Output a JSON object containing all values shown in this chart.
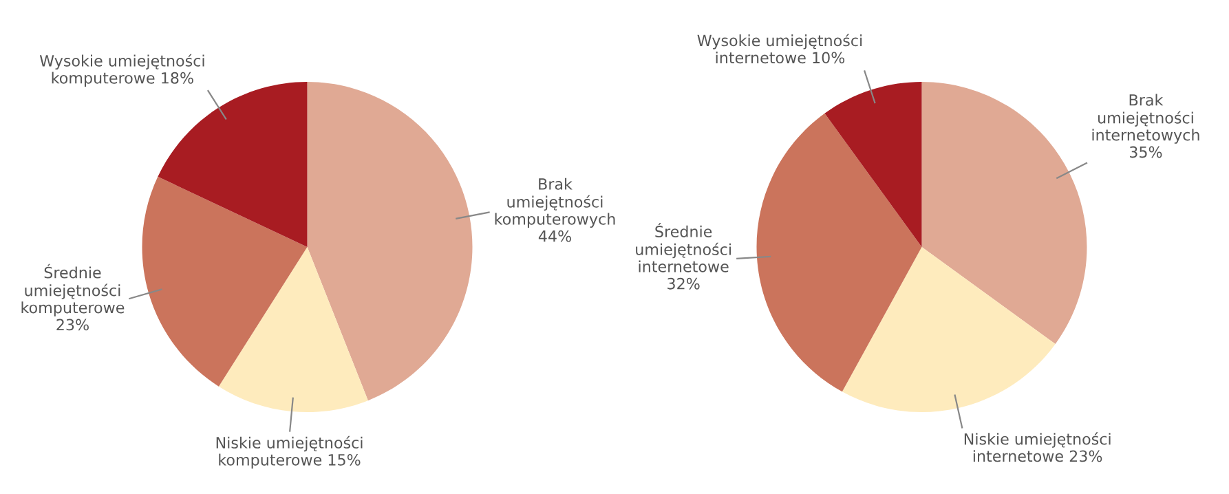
{
  "chart_data": [
    {
      "type": "pie",
      "categories": [
        "Brak\numiejętności\nkomputerowych",
        "Niskie umiejętności\nkomputerowe",
        "Średnie\numiejętności\nkomputerowe",
        "Wysokie umiejętności\nkomputerowe"
      ],
      "values": [
        44,
        15,
        23,
        18
      ],
      "value_labels": [
        "44%",
        "15%",
        "23%",
        "18%"
      ],
      "colors": [
        "#e0a994",
        "#feebbd",
        "#cb745c",
        "#a81c22"
      ]
    },
    {
      "type": "pie",
      "categories": [
        "Brak\numiejętności\ninternetowych",
        "Niskie umiejętności\ninternetowe",
        "Średnie\numiejętności\ninternetowe",
        "Wysokie umiejętności\ninternetowe"
      ],
      "values": [
        35,
        23,
        32,
        10
      ],
      "value_labels": [
        "35%",
        "23%",
        "32%",
        "10%"
      ],
      "colors": [
        "#e0a994",
        "#feebbd",
        "#cb745c",
        "#a81c22"
      ]
    }
  ]
}
